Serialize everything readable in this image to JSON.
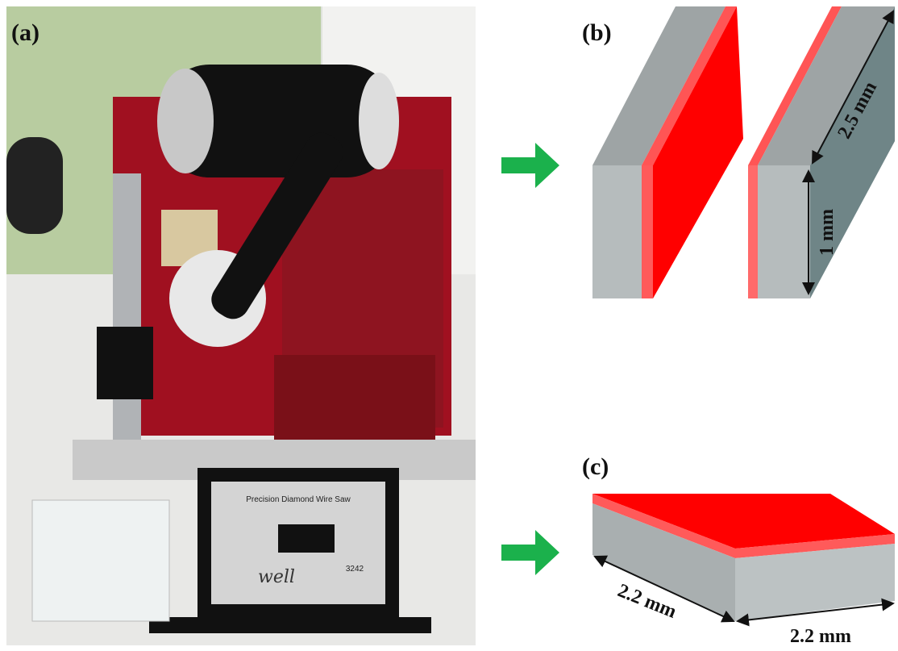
{
  "panels": {
    "a": {
      "label": "(a)",
      "device_title": "Precision Diamond Wire Saw",
      "device_model": "3242",
      "device_brand": "well"
    },
    "b": {
      "label": "(b)",
      "length_label": "2.5 mm",
      "thickness_label": "1 mm"
    },
    "c": {
      "label": "(c)",
      "width_label": "2.2 mm",
      "depth_label": "2.2 mm"
    }
  }
}
